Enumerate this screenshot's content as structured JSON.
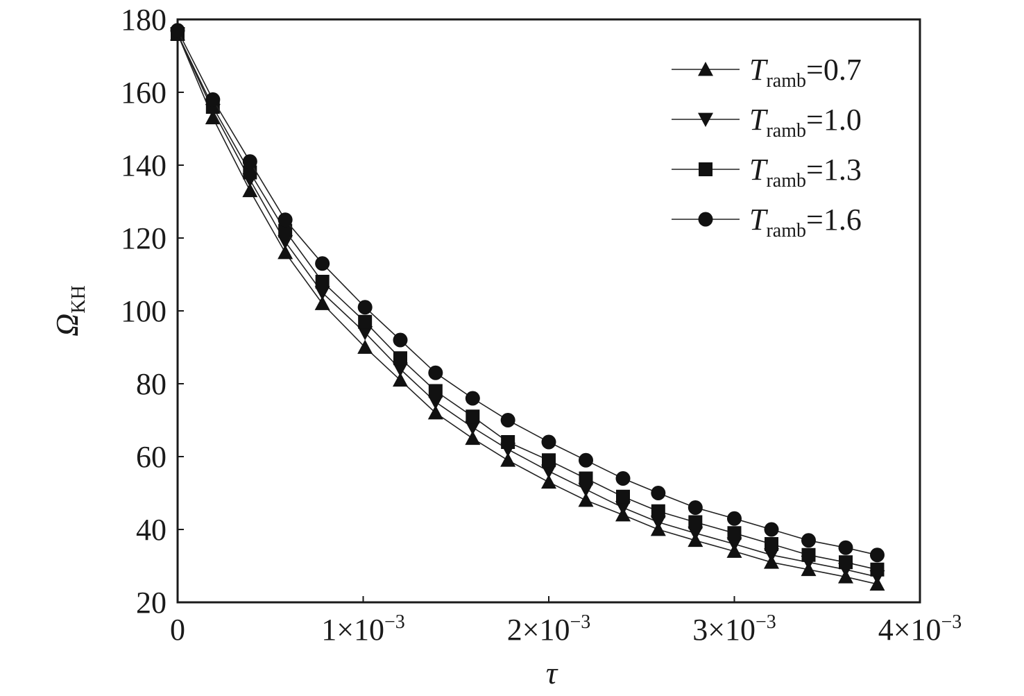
{
  "chart_data": {
    "type": "line",
    "title": "",
    "xlabel": "τ",
    "ylabel": {
      "main": "Ω",
      "sub": "KH"
    },
    "xlim": [
      0,
      0.004
    ],
    "ylim": [
      20,
      180
    ],
    "x_ticks": [
      {
        "value": 0,
        "base": "0",
        "exp": ""
      },
      {
        "value": 0.001,
        "base": "1×10",
        "exp": "−3"
      },
      {
        "value": 0.002,
        "base": "2×10",
        "exp": "−3"
      },
      {
        "value": 0.003,
        "base": "3×10",
        "exp": "−3"
      },
      {
        "value": 0.004,
        "base": "4×10",
        "exp": "−3"
      }
    ],
    "y_ticks": [
      20,
      40,
      60,
      80,
      100,
      120,
      140,
      160,
      180
    ],
    "grid": false,
    "legend_position": "top-right",
    "x": [
      0.0,
      0.00019,
      0.00039,
      0.00058,
      0.00078,
      0.00101,
      0.0012,
      0.00139,
      0.00159,
      0.00178,
      0.002,
      0.0022,
      0.0024,
      0.00259,
      0.00279,
      0.003,
      0.0032,
      0.0034,
      0.0036,
      0.00377
    ],
    "series": [
      {
        "name": "T_ramb=0.7",
        "label_main": "T",
        "label_sub": "ramb",
        "label_val": "=0.7",
        "marker": "triangle-up",
        "values": [
          176,
          153,
          133,
          116,
          102,
          90,
          81,
          72,
          65,
          59,
          53,
          48,
          44,
          40,
          37,
          34,
          31,
          29,
          27,
          25
        ]
      },
      {
        "name": "T_ramb=1.0",
        "label_main": "T",
        "label_sub": "ramb",
        "label_val": "=1.0",
        "marker": "triangle-down",
        "values": [
          176,
          155,
          136,
          119,
          105,
          94,
          84,
          75,
          68,
          62,
          56,
          51,
          46,
          42,
          39,
          36,
          33,
          31,
          29,
          27
        ]
      },
      {
        "name": "T_ramb=1.3",
        "label_main": "T",
        "label_sub": "ramb",
        "label_val": "=1.3",
        "marker": "square",
        "values": [
          176,
          156,
          138,
          122,
          108,
          97,
          87,
          78,
          71,
          64,
          59,
          54,
          49,
          45,
          42,
          39,
          36,
          33,
          31,
          29
        ]
      },
      {
        "name": "T_ramb=1.6",
        "label_main": "T",
        "label_sub": "ramb",
        "label_val": "=1.6",
        "marker": "circle",
        "values": [
          177,
          158,
          141,
          125,
          113,
          101,
          92,
          83,
          76,
          70,
          64,
          59,
          54,
          50,
          46,
          43,
          40,
          37,
          35,
          33
        ]
      }
    ]
  }
}
